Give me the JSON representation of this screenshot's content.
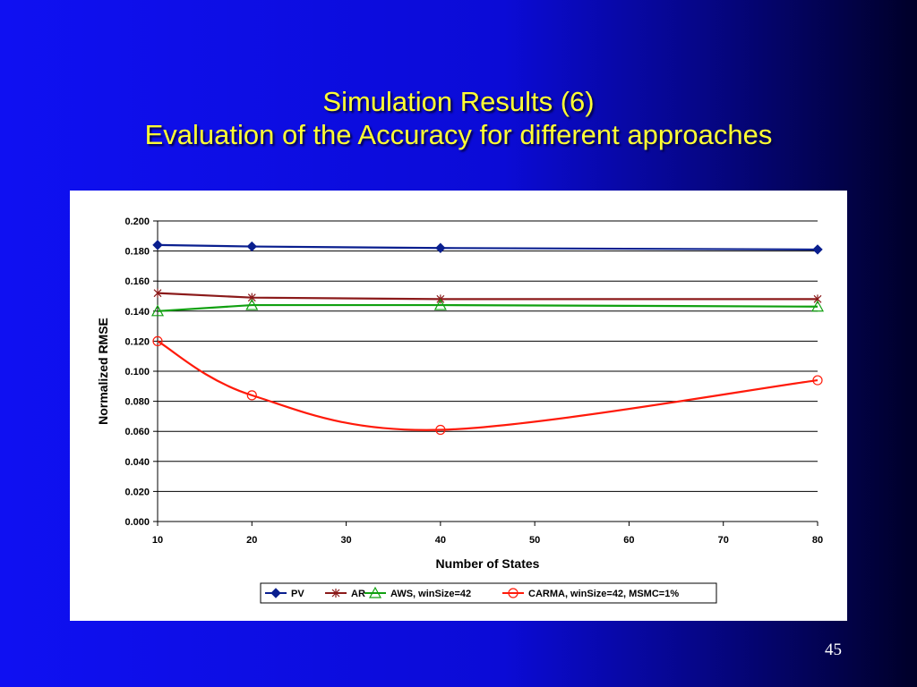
{
  "slide": {
    "title_line1": "Simulation Results (6)",
    "title_line2": "Evaluation of the Accuracy for different approaches",
    "page_number": "45",
    "colors": {
      "title": "#ffff33",
      "background_left": "#0f10f2",
      "background_right": "#000028",
      "panel": "#ffffff"
    }
  },
  "chart_data": {
    "type": "line",
    "title": "",
    "xlabel": "Number of States",
    "ylabel": "Normalized RMSE",
    "xlim": [
      10,
      80
    ],
    "ylim": [
      0.0,
      0.2
    ],
    "x_ticks": [
      10,
      20,
      30,
      40,
      50,
      60,
      70,
      80
    ],
    "x_tick_labels": [
      "10",
      "20",
      "30",
      "40",
      "50",
      "60",
      "70",
      "80"
    ],
    "y_ticks": [
      0.0,
      0.02,
      0.04,
      0.06,
      0.08,
      0.1,
      0.12,
      0.14,
      0.16,
      0.18,
      0.2
    ],
    "y_tick_labels": [
      "0.000",
      "0.020",
      "0.040",
      "0.060",
      "0.080",
      "0.100",
      "0.120",
      "0.140",
      "0.160",
      "0.180",
      "0.200"
    ],
    "grid": "horizontal",
    "legend_position": "bottom",
    "x": [
      10,
      20,
      40,
      80
    ],
    "series": [
      {
        "name": "PV",
        "values": [
          0.184,
          0.183,
          0.182,
          0.181
        ],
        "color": "#0a1f8f",
        "marker": "diamond",
        "smooth": false
      },
      {
        "name": "AR",
        "values": [
          0.152,
          0.149,
          0.148,
          0.148
        ],
        "color": "#8b1a1a",
        "marker": "star",
        "smooth": false
      },
      {
        "name": "AWS, winSize=42",
        "values": [
          0.14,
          0.144,
          0.144,
          0.143
        ],
        "color": "#11a011",
        "marker": "triangle",
        "smooth": false
      },
      {
        "name": "CARMA, winSize=42, MSMC=1%",
        "values": [
          0.12,
          0.084,
          0.061,
          0.094
        ],
        "color": "#ff1a0a",
        "marker": "circle",
        "smooth": true
      }
    ]
  }
}
